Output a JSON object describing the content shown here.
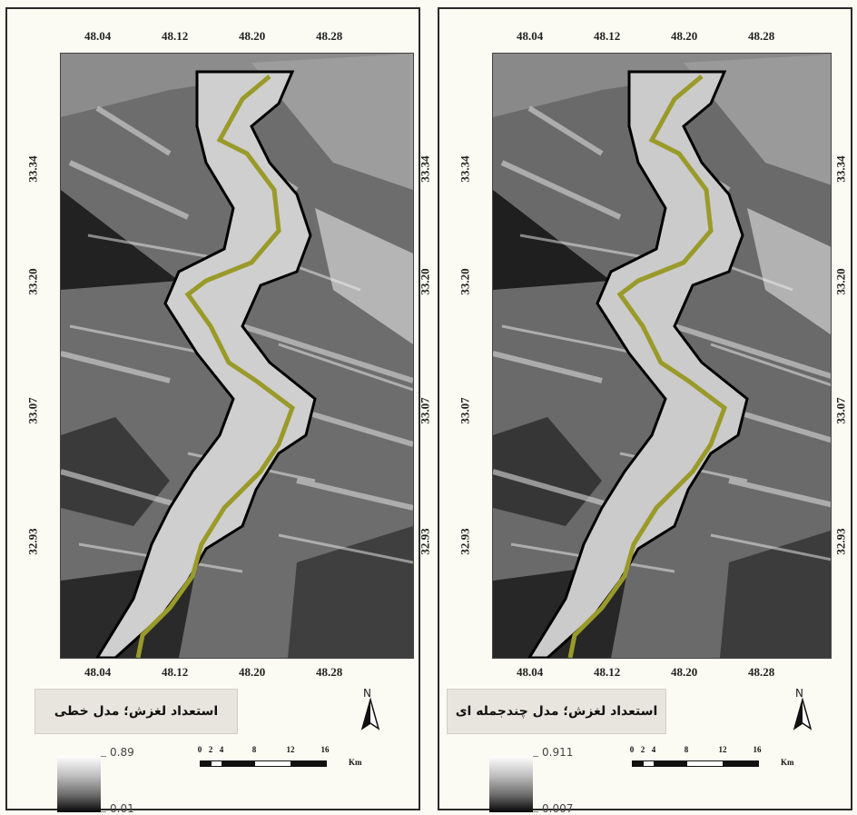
{
  "ticks": {
    "longitude": [
      "48.04",
      "48.12",
      "48.20",
      "48.28"
    ],
    "latitude": [
      "33.34",
      "33.20",
      "33.07",
      "32.93"
    ]
  },
  "panels": [
    {
      "title": "استعداد لغزش؛ مدل خطی",
      "legend_max": "0.89",
      "legend_min": "0.01"
    },
    {
      "title": "استعداد لغزش؛ مدل چندجمله ای",
      "legend_max": "0.911",
      "legend_min": "0.007"
    }
  ],
  "north_label": "N",
  "scale": {
    "labels": [
      "0",
      "2",
      "4",
      "8",
      "12",
      "16"
    ],
    "unit": "Km"
  },
  "colors": {
    "road": "#9a9a2a",
    "boundary": "#000000",
    "frame": "#2a2a2a"
  }
}
